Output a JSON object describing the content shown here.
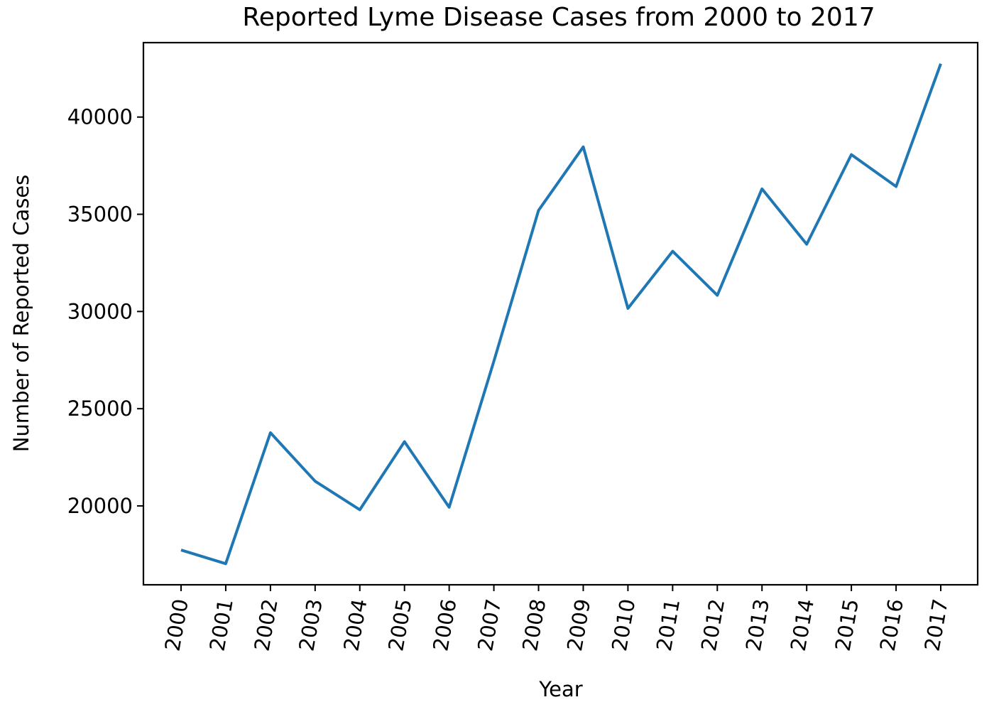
{
  "chart_data": {
    "type": "line",
    "title": "Reported Lyme Disease Cases from 2000 to 2017",
    "xlabel": "Year",
    "ylabel": "Number of Reported Cases",
    "categories": [
      "2000",
      "2001",
      "2002",
      "2003",
      "2004",
      "2005",
      "2006",
      "2007",
      "2008",
      "2009",
      "2010",
      "2011",
      "2012",
      "2013",
      "2014",
      "2015",
      "2016",
      "2017"
    ],
    "series": [
      {
        "values": [
          17730,
          17029,
          23763,
          21273,
          19804,
          23305,
          19931,
          27444,
          35198,
          38468,
          30158,
          33097,
          30831,
          36307,
          33461,
          38069,
          36429,
          42743
        ],
        "color": "#1f77b4"
      }
    ],
    "yticks": [
      20000,
      25000,
      30000,
      35000,
      40000
    ],
    "ylim": [
      15943,
      43828
    ],
    "grid": false,
    "legend": "none"
  }
}
